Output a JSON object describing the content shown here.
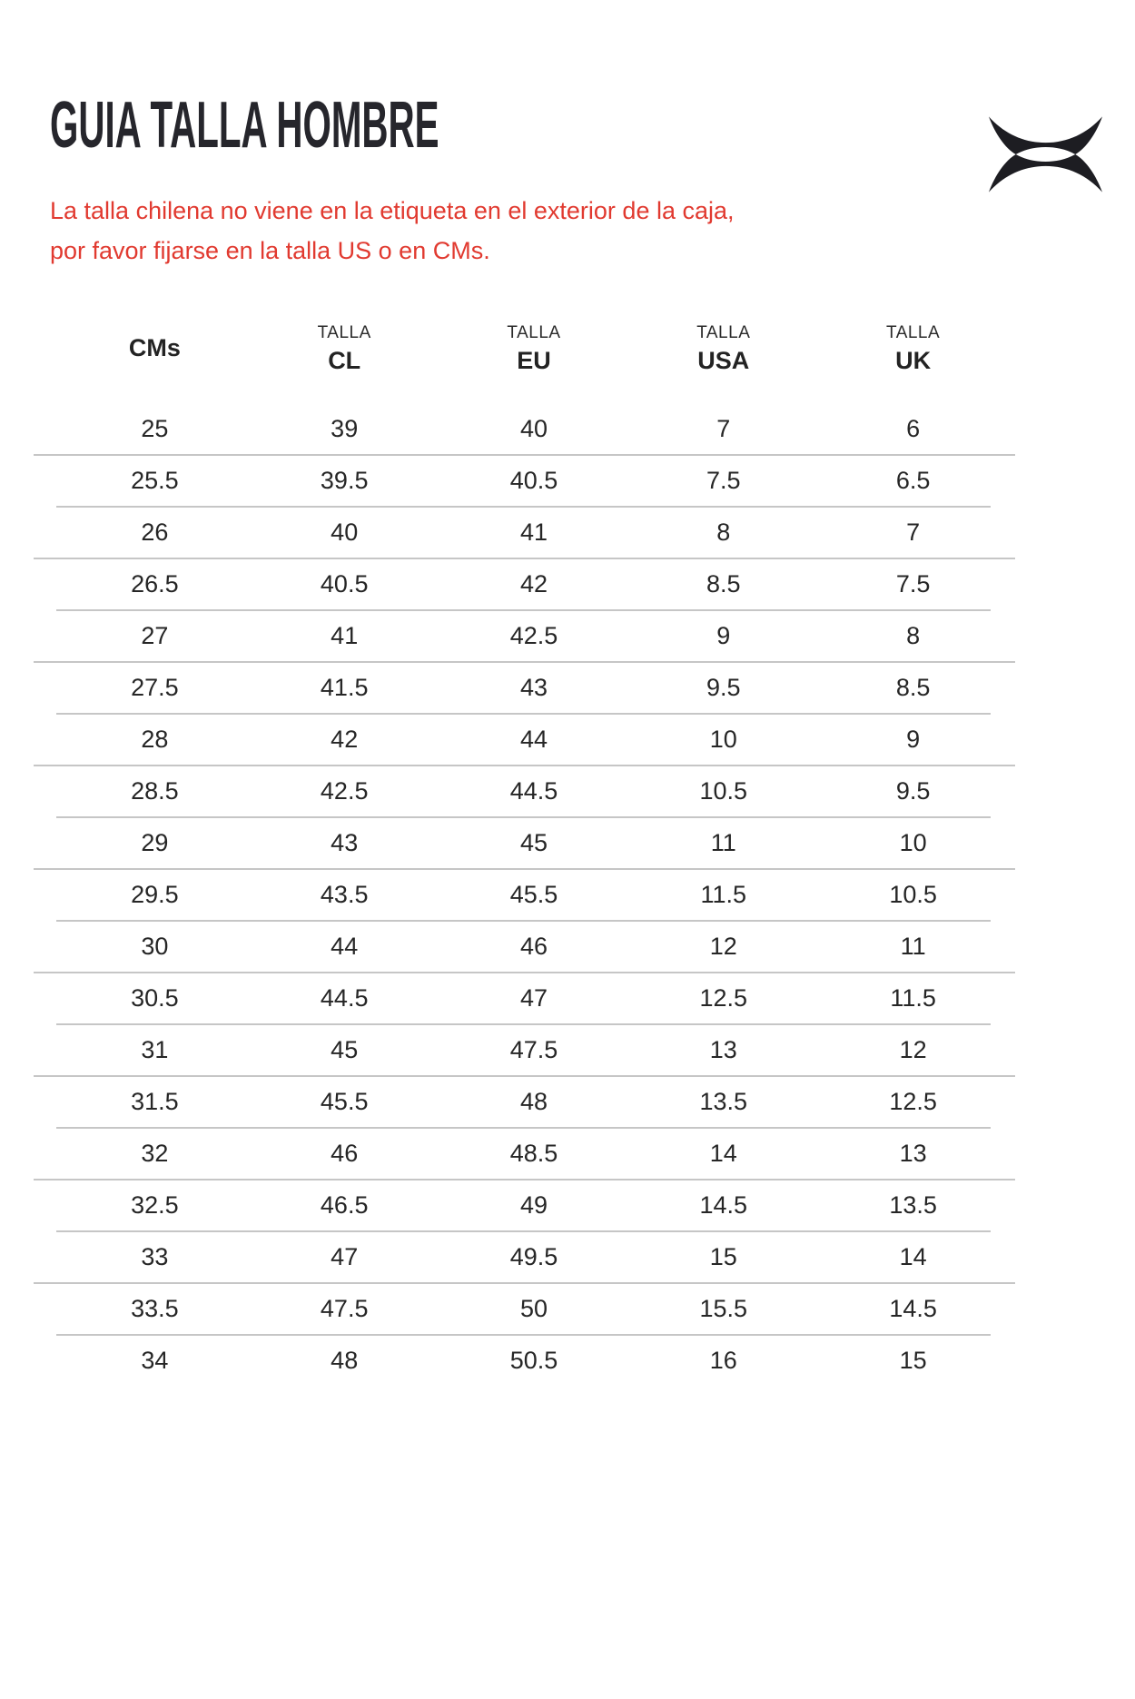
{
  "brand": {
    "logo_icon": "under-armour-logo"
  },
  "title": "GUIA TALLA HOMBRE",
  "notice": {
    "line1": "La talla chilena no viene en la etiqueta en el exterior de la caja,",
    "line2": "por favor fijarse en la talla US o en CMs."
  },
  "table": {
    "header": {
      "cms": "CMs",
      "talla_label": "TALLA",
      "columns": [
        "CL",
        "EU",
        "USA",
        "UK"
      ]
    },
    "rows": [
      [
        "25",
        "39",
        "40",
        "7",
        "6"
      ],
      [
        "25.5",
        "39.5",
        "40.5",
        "7.5",
        "6.5"
      ],
      [
        "26",
        "40",
        "41",
        "8",
        "7"
      ],
      [
        "26.5",
        "40.5",
        "42",
        "8.5",
        "7.5"
      ],
      [
        "27",
        "41",
        "42.5",
        "9",
        "8"
      ],
      [
        "27.5",
        "41.5",
        "43",
        "9.5",
        "8.5"
      ],
      [
        "28",
        "42",
        "44",
        "10",
        "9"
      ],
      [
        "28.5",
        "42.5",
        "44.5",
        "10.5",
        "9.5"
      ],
      [
        "29",
        "43",
        "45",
        "11",
        "10"
      ],
      [
        "29.5",
        "43.5",
        "45.5",
        "11.5",
        "10.5"
      ],
      [
        "30",
        "44",
        "46",
        "12",
        "11"
      ],
      [
        "30.5",
        "44.5",
        "47",
        "12.5",
        "11.5"
      ],
      [
        "31",
        "45",
        "47.5",
        "13",
        "12"
      ],
      [
        "31.5",
        "45.5",
        "48",
        "13.5",
        "12.5"
      ],
      [
        "32",
        "46",
        "48.5",
        "14",
        "13"
      ],
      [
        "32.5",
        "46.5",
        "49",
        "14.5",
        "13.5"
      ],
      [
        "33",
        "47",
        "49.5",
        "15",
        "14"
      ],
      [
        "33.5",
        "47.5",
        "50",
        "15.5",
        "14.5"
      ],
      [
        "34",
        "48",
        "50.5",
        "16",
        "15"
      ]
    ]
  },
  "colors": {
    "notice_red": "#e13a30",
    "text": "#262626",
    "divider": "#c6c6c6",
    "logo_black": "#1d1d22"
  }
}
